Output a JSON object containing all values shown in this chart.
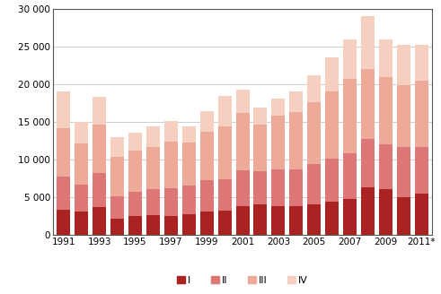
{
  "years": [
    1991,
    1992,
    1993,
    1994,
    1995,
    1996,
    1997,
    1998,
    1999,
    2000,
    2001,
    2002,
    2003,
    2004,
    2005,
    2006,
    2007,
    2008,
    2009,
    2010,
    2011
  ],
  "Q1": [
    3400,
    3100,
    3700,
    2200,
    2600,
    2700,
    2600,
    2800,
    3100,
    3200,
    3900,
    4100,
    3800,
    3900,
    4100,
    4500,
    4800,
    6300,
    6100,
    5000,
    5500
  ],
  "Q2": [
    4400,
    3600,
    4500,
    3000,
    3100,
    3400,
    3600,
    3800,
    4200,
    4200,
    4700,
    4400,
    4900,
    4800,
    5300,
    5600,
    6100,
    6500,
    6000,
    6700,
    6200
  ],
  "Q3": [
    6400,
    5500,
    6400,
    5200,
    5500,
    5600,
    6200,
    5700,
    6400,
    7000,
    7600,
    6100,
    7100,
    7600,
    8200,
    9000,
    9800,
    9200,
    8800,
    8200,
    8800
  ],
  "Q4": [
    4800,
    2800,
    3700,
    2600,
    2400,
    2700,
    2700,
    2100,
    2700,
    4000,
    3100,
    2300,
    2300,
    2800,
    3600,
    4500,
    5200,
    7000,
    5000,
    5300,
    4700
  ],
  "colors": [
    "#aa2222",
    "#dd7777",
    "#eeaa99",
    "#f5cfc0"
  ],
  "legend_labels": [
    "I",
    "II",
    "III",
    "IV"
  ],
  "yticks": [
    0,
    5000,
    10000,
    15000,
    20000,
    25000,
    30000
  ],
  "ytick_labels": [
    "0",
    "5 000",
    "10 000",
    "15 000",
    "20 000",
    "25 000",
    "30 000"
  ],
  "xtick_labels": [
    "1991",
    "1993",
    "1995",
    "1997",
    "1999",
    "2001",
    "2003",
    "2005",
    "2007",
    "2009",
    "2011*"
  ],
  "xtick_years": [
    1991,
    1993,
    1995,
    1997,
    1999,
    2001,
    2003,
    2005,
    2007,
    2009,
    2011
  ],
  "ylim": [
    0,
    30000
  ],
  "bar_width": 0.75,
  "bg_color": "#ffffff",
  "grid_color": "#bbbbbb",
  "border_color": "#555555"
}
